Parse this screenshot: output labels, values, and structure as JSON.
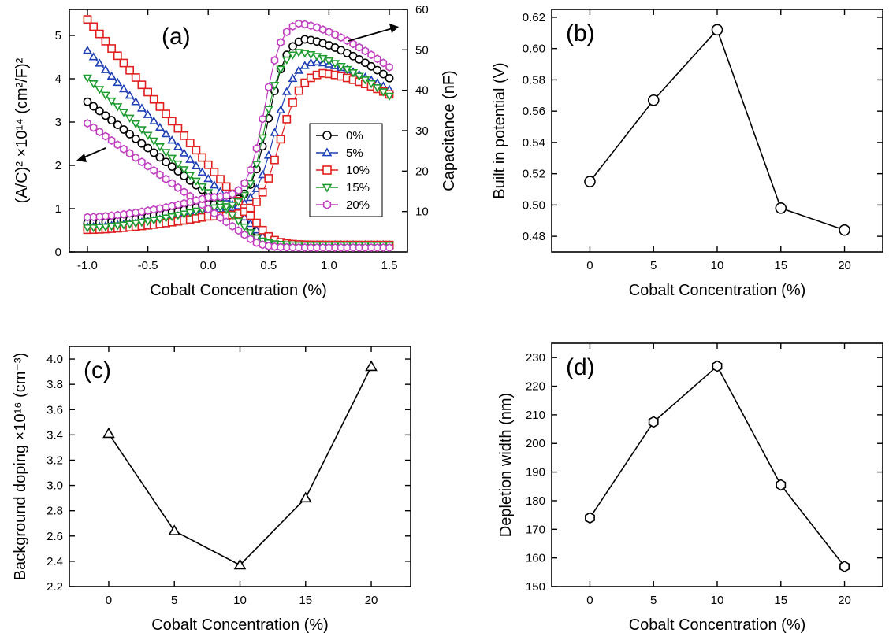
{
  "chart_data": [
    {
      "panel": "(a)",
      "type": "line",
      "xlabel": "Cobalt Concentration (%)",
      "ylabel": "(A/C)² ×10¹⁴ (cm²/F)²",
      "y2label": "Capacitance (nF)",
      "xlim": [
        -1.15,
        1.65
      ],
      "ylim": [
        0,
        5.6
      ],
      "y2lim": [
        0,
        60
      ],
      "xticks": [
        "-1.0",
        "-0.5",
        "0.0",
        "0.5",
        "1.0",
        "1.5"
      ],
      "yticks": [
        "0",
        "1",
        "2",
        "3",
        "4",
        "5"
      ],
      "y2ticks": [
        "10",
        "20",
        "30",
        "40",
        "50",
        "60"
      ],
      "legend_position": "center-right",
      "series": [
        {
          "name": "0%",
          "color": "#000000",
          "marker": "circle",
          "x_range": [
            -1.0,
            1.5
          ],
          "left_axis": {
            "start": 3.47,
            "zero_at": 0.62,
            "tail": 0.16
          },
          "right_axis": {
            "start": 7.2,
            "at_0": 11.8,
            "peak_x": 0.8,
            "peak": 52.6,
            "end": 43.0
          }
        },
        {
          "name": "5%",
          "color": "#1f3fb5",
          "marker": "triangle-up",
          "x_range": [
            -1.0,
            1.5
          ],
          "left_axis": {
            "start": 4.65,
            "zero_at": 0.57,
            "tail": 0.16
          },
          "right_axis": {
            "start": 6.2,
            "at_0": 10.5,
            "peak_x": 0.88,
            "peak": 47.0,
            "end": 40.2
          }
        },
        {
          "name": "10%",
          "color": "#e02020",
          "marker": "square",
          "x_range": [
            -1.0,
            1.5
          ],
          "left_axis": {
            "start": 5.37,
            "zero_at": 0.6,
            "tail": 0.16
          },
          "right_axis": {
            "start": 5.5,
            "at_0": 8.8,
            "peak_x": 0.95,
            "peak": 44.2,
            "end": 39.0
          }
        },
        {
          "name": "15%",
          "color": "#1e9b2f",
          "marker": "triangle-down",
          "x_range": [
            -1.0,
            1.5
          ],
          "left_axis": {
            "start": 4.02,
            "zero_at": 0.52,
            "tail": 0.16
          },
          "right_axis": {
            "start": 6.0,
            "at_0": 10.9,
            "peak_x": 0.75,
            "peak": 49.4,
            "end": 38.6
          }
        },
        {
          "name": "20%",
          "color": "#c040c0",
          "marker": "hexagon",
          "x_range": [
            -1.0,
            1.5
          ],
          "left_axis": {
            "start": 2.97,
            "zero_at": 0.5,
            "tail": 0.1
          },
          "right_axis": {
            "start": 8.6,
            "at_0": 13.5,
            "peak_x": 0.75,
            "peak": 56.5,
            "end": 45.7
          }
        }
      ]
    },
    {
      "panel": "(b)",
      "type": "line",
      "xlabel": "Cobalt Concentration (%)",
      "ylabel": "Built in potential (V)",
      "x": [
        0,
        5,
        10,
        15,
        20
      ],
      "values": [
        0.515,
        0.567,
        0.612,
        0.498,
        0.484
      ],
      "xlim": [
        -3,
        23
      ],
      "ylim": [
        0.47,
        0.625
      ],
      "xticks": [
        "0",
        "5",
        "10",
        "15",
        "20"
      ],
      "yticks": [
        "0.48",
        "0.50",
        "0.52",
        "0.54",
        "0.56",
        "0.58",
        "0.60",
        "0.62"
      ],
      "marker": "circle",
      "color": "#000000"
    },
    {
      "panel": "(c)",
      "type": "line",
      "xlabel": "Cobalt Concentration (%)",
      "ylabel": "Background doping ×10¹⁶ (cm⁻³)",
      "x": [
        0,
        5,
        10,
        15,
        20
      ],
      "values": [
        3.41,
        2.64,
        2.37,
        2.9,
        3.94
      ],
      "xlim": [
        -3,
        23
      ],
      "ylim": [
        2.2,
        4.1
      ],
      "xticks": [
        "0",
        "5",
        "10",
        "15",
        "20"
      ],
      "yticks": [
        "2.2",
        "2.4",
        "2.6",
        "2.8",
        "3.0",
        "3.2",
        "3.4",
        "3.6",
        "3.8",
        "4.0"
      ],
      "marker": "triangle-up",
      "color": "#000000"
    },
    {
      "panel": "(d)",
      "type": "line",
      "xlabel": "Cobalt Concentration (%)",
      "ylabel": "Depletion width (nm)",
      "x": [
        0,
        5,
        10,
        15,
        20
      ],
      "values": [
        174,
        207.5,
        227,
        185.5,
        157
      ],
      "xlim": [
        -3,
        23
      ],
      "ylim": [
        150,
        235
      ],
      "xticks": [
        "0",
        "5",
        "10",
        "15",
        "20"
      ],
      "yticks": [
        "150",
        "160",
        "170",
        "180",
        "190",
        "200",
        "210",
        "220",
        "230"
      ],
      "marker": "hexagon",
      "color": "#000000"
    }
  ]
}
